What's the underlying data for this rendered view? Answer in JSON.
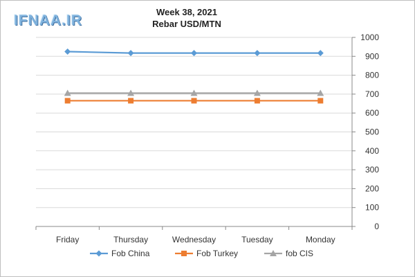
{
  "watermark": "IFNAA.IR",
  "chart_data": {
    "type": "line",
    "title": "Week 38, 2021",
    "subtitle": "Rebar USD/MTN",
    "categories": [
      "Friday",
      "Thursday",
      "Wednesday",
      "Tuesday",
      "Monday"
    ],
    "series": [
      {
        "name": "Fob China",
        "values": [
          925,
          917,
          917,
          917,
          917
        ],
        "color": "#5b9bd5",
        "marker": "diamond"
      },
      {
        "name": "Fob Turkey",
        "values": [
          665,
          665,
          665,
          665,
          665
        ],
        "color": "#ed7d31",
        "marker": "square"
      },
      {
        "name": "fob CIS",
        "values": [
          705,
          705,
          705,
          705,
          705
        ],
        "color": "#a5a5a5",
        "marker": "triangle"
      }
    ],
    "ylim": [
      0,
      1000
    ],
    "yticks": [
      0,
      100,
      200,
      300,
      400,
      500,
      600,
      700,
      800,
      900,
      1000
    ],
    "yaxis_side": "right",
    "grid": true,
    "legend": "bottom"
  }
}
